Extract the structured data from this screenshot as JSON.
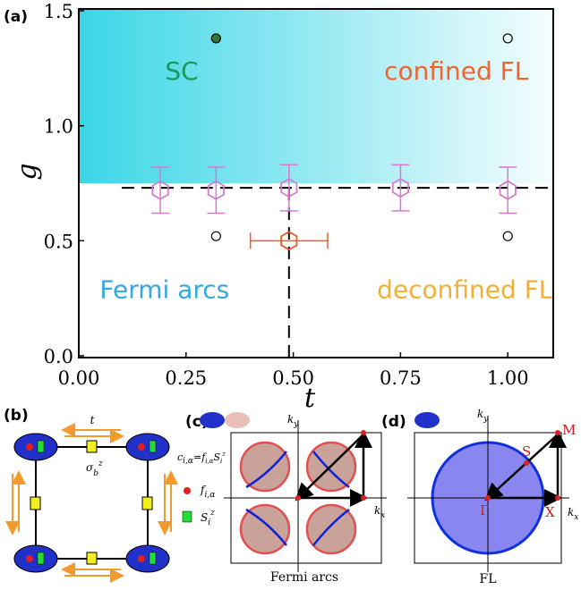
{
  "chart_data": {
    "type": "scatter",
    "panel_label": "(a)",
    "x_label": "t",
    "y_label": "g",
    "xlim": [
      0,
      1.106
    ],
    "ylim": [
      -0.008,
      1.508
    ],
    "xticks": [
      {
        "value": 0,
        "label": "0.00"
      },
      {
        "value": 0.25,
        "label": "0.25"
      },
      {
        "value": 0.5,
        "label": "0.50"
      },
      {
        "value": 0.75,
        "label": "0.75"
      },
      {
        "value": 1,
        "label": "1.00"
      }
    ],
    "yticks": [
      {
        "value": 0,
        "label": "0.0"
      },
      {
        "value": 0.5,
        "label": "0.5"
      },
      {
        "value": 1,
        "label": "1.0"
      },
      {
        "value": 1.5,
        "label": "1.5"
      }
    ],
    "shaded_above": 0.75,
    "shade_color": "#3ad6e6",
    "boundary_g": 0.73,
    "boundary_t": 0.49,
    "region_labels": [
      {
        "text": "SC",
        "color": "#1a9a5a"
      },
      {
        "text": "confined FL",
        "color": "#f06432"
      },
      {
        "text": "Fermi arcs",
        "color": "#34a8e0"
      },
      {
        "text": "deconfined FL",
        "color": "#f2b035"
      }
    ],
    "series": [
      {
        "marker": "hexagon",
        "color": "#d67ad0",
        "x": [
          0.19,
          0.32,
          0.49,
          0.75,
          1.0
        ],
        "values": [
          0.72,
          0.72,
          0.73,
          0.73,
          0.72
        ],
        "errors": [
          0.1,
          0.1,
          0.1,
          0.1,
          0.1
        ]
      },
      {
        "marker": "hexagon",
        "color": "#ec5a2e",
        "x": [
          0.49
        ],
        "values": [
          0.5
        ],
        "xerrors": [
          0.09
        ]
      },
      {
        "marker": "filled-circle",
        "color": "#2d7a3e",
        "x": [
          0.32
        ],
        "values": [
          1.38
        ]
      },
      {
        "marker": "open-circle",
        "color": "#000000",
        "x": [
          1.0,
          0.32,
          1.0
        ],
        "values": [
          1.38,
          0.52,
          0.52
        ]
      }
    ]
  },
  "panels": {
    "b": {
      "label": "(b)",
      "hopping": "t",
      "sigma": {
        "base": "σ",
        "sub": "b",
        "sup": "z"
      },
      "legend_c": {
        "c": "c",
        "c_sub": "i,α",
        "eq": "=",
        "f": "f",
        "f_sub": "i,α",
        "s": "S",
        "s_sub": "i",
        "s_sup": "z"
      },
      "legend_f": {
        "base": "f",
        "sub": "i,α"
      },
      "legend_s": {
        "base": "S",
        "sub": "i",
        "sup": "z"
      }
    },
    "c": {
      "label": "(c)",
      "ky": {
        "base": "k",
        "sub": "y"
      },
      "kx": {
        "base": "k",
        "sub": "x"
      },
      "caption": "Fermi arcs"
    },
    "d": {
      "label": "(d)",
      "ky": {
        "base": "k",
        "sub": "y"
      },
      "kx": {
        "base": "k",
        "sub": "x"
      },
      "gamma": "Γ",
      "s": "S",
      "m": "M",
      "x": "X",
      "caption": "FL"
    }
  }
}
